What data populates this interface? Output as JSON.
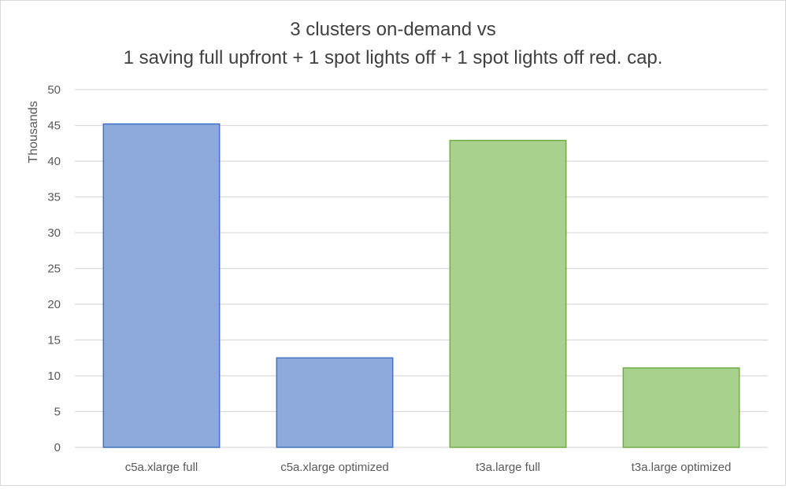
{
  "chart_data": {
    "type": "bar",
    "title_lines": [
      "3 clusters on-demand vs",
      "1 saving full upfront + 1 spot lights off + 1 spot lights off red. cap."
    ],
    "ylabel": "Thousands",
    "xlabel": "",
    "ylim": [
      0,
      50
    ],
    "yticks": [
      "0",
      "5",
      "10",
      "15",
      "20",
      "25",
      "30",
      "35",
      "40",
      "45",
      "50"
    ],
    "grid": true,
    "legend": "none",
    "categories": [
      "c5a.xlarge full",
      "c5a.xlarge optimized",
      "t3a.large full",
      "t3a.large optimized"
    ],
    "values": [
      45.2,
      12.5,
      42.9,
      11.1
    ],
    "colors": {
      "fill": [
        "#8eaadc",
        "#8eaadc",
        "#a9d18e",
        "#a9d18e"
      ],
      "stroke": [
        "#4472c4",
        "#4472c4",
        "#70ad47",
        "#70ad47"
      ],
      "grid": "#d9d9d9",
      "text": "#595959",
      "title": "#404040"
    }
  }
}
